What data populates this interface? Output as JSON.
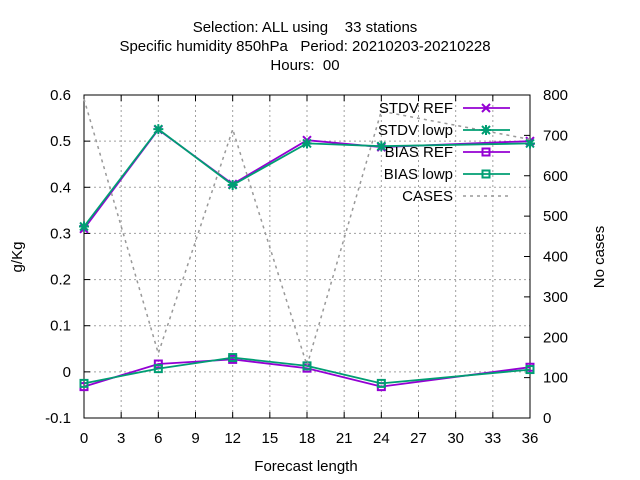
{
  "chart_data": {
    "type": "line",
    "title_lines": [
      "Selection: ALL using    33 stations",
      "Specific humidity 850hPa   Period: 20210203-20210228",
      "Hours:  00"
    ],
    "xlabel": "Forecast length",
    "ylabel": "g/Kg",
    "y2label": "No cases",
    "x_ticks": [
      0,
      3,
      6,
      9,
      12,
      15,
      18,
      21,
      24,
      27,
      30,
      33,
      36
    ],
    "y_ticks": [
      -0.1,
      0,
      0.1,
      0.2,
      0.3,
      0.4,
      0.5,
      0.6
    ],
    "y2_ticks": [
      0,
      100,
      200,
      300,
      400,
      500,
      600,
      700,
      800
    ],
    "xlim": [
      0,
      36
    ],
    "ylim": [
      -0.1,
      0.6
    ],
    "y2lim": [
      0,
      800
    ],
    "grid": true,
    "legend_position": "top-right",
    "x": [
      0,
      6,
      12,
      18,
      24,
      36
    ],
    "series": [
      {
        "name": "STDV REF",
        "color": "#9400d3",
        "marker": "x",
        "axis": "y",
        "values": [
          0.31,
          0.525,
          0.407,
          0.502,
          0.487,
          0.5
        ]
      },
      {
        "name": "STDV lowp",
        "color": "#009e73",
        "marker": "star",
        "axis": "y",
        "values": [
          0.315,
          0.526,
          0.405,
          0.495,
          0.489,
          0.495
        ]
      },
      {
        "name": "BIAS REF",
        "color": "#9400d3",
        "marker": "square",
        "axis": "y",
        "values": [
          -0.032,
          0.017,
          0.027,
          0.008,
          -0.032,
          0.01
        ]
      },
      {
        "name": "BIAS lowp",
        "color": "#009e73",
        "marker": "square",
        "axis": "y",
        "values": [
          -0.025,
          0.007,
          0.031,
          0.013,
          -0.025,
          0.005
        ]
      },
      {
        "name": "CASES",
        "color": "#999999",
        "marker": "none",
        "dash": true,
        "axis": "y2",
        "values": [
          790,
          160,
          715,
          130,
          760,
          690
        ]
      }
    ]
  }
}
